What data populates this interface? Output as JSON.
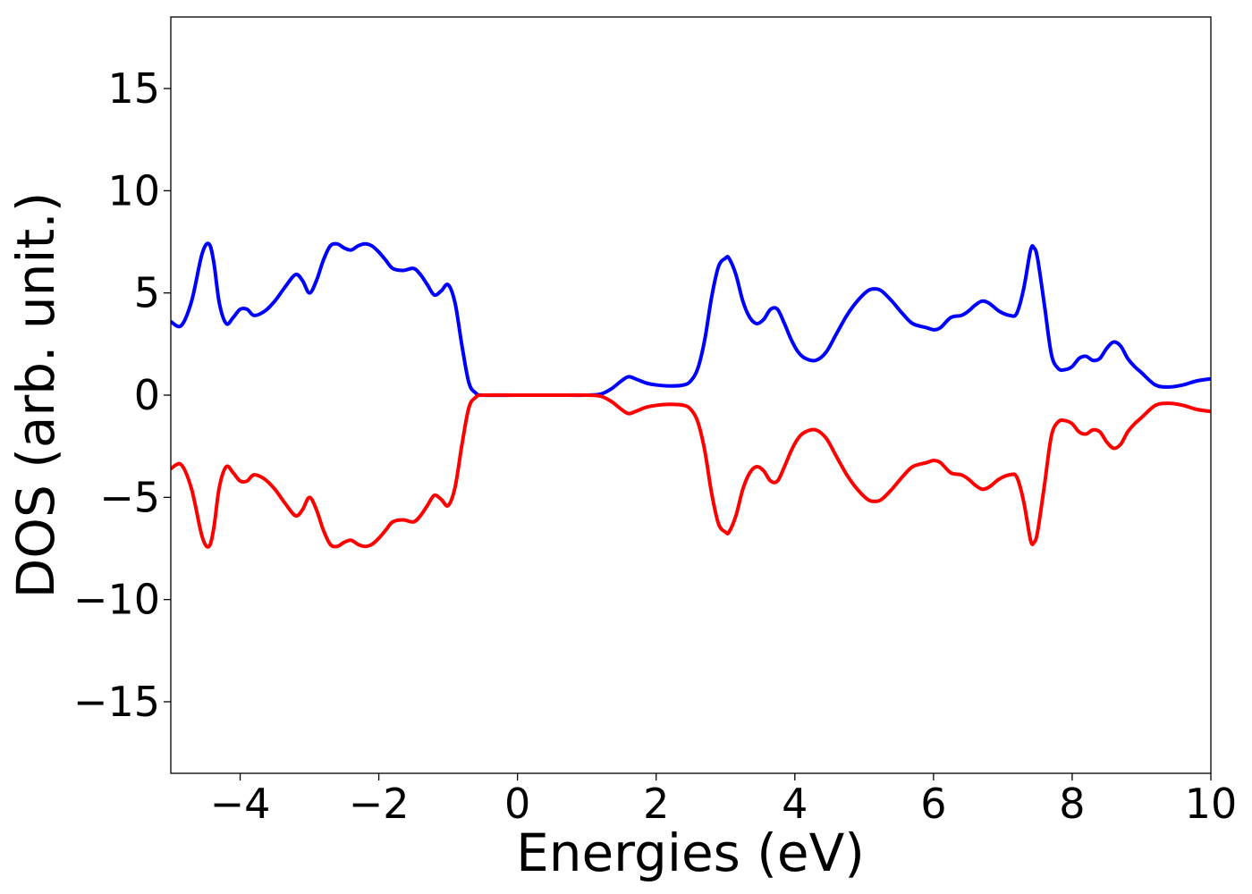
{
  "chart_data": {
    "type": "line",
    "title": "",
    "xlabel": "Energies (eV)",
    "ylabel": "DOS (arb. unit.)",
    "xlim": [
      -5,
      10
    ],
    "ylim": [
      -18.5,
      18.5
    ],
    "grid": false,
    "legend": "none",
    "xticks": [
      -4,
      -2,
      0,
      2,
      4,
      6,
      8,
      10
    ],
    "xtick_labels": [
      "−4",
      "−2",
      "0",
      "2",
      "4",
      "6",
      "8",
      "10"
    ],
    "yticks": [
      -15,
      -10,
      -5,
      0,
      5,
      10,
      15
    ],
    "ytick_labels": [
      "−15",
      "−10",
      "−5",
      "0",
      "5",
      "10",
      "15"
    ],
    "mirror_about_zero": true,
    "series": [
      {
        "color": "#0000ff",
        "x": [
          -5.0,
          -4.85,
          -4.7,
          -4.55,
          -4.45,
          -4.38,
          -4.3,
          -4.2,
          -4.1,
          -4.0,
          -3.9,
          -3.8,
          -3.65,
          -3.5,
          -3.35,
          -3.2,
          -3.1,
          -3.0,
          -2.9,
          -2.8,
          -2.7,
          -2.6,
          -2.5,
          -2.4,
          -2.3,
          -2.2,
          -2.1,
          -2.0,
          -1.9,
          -1.8,
          -1.65,
          -1.5,
          -1.4,
          -1.3,
          -1.2,
          -1.1,
          -1.0,
          -0.9,
          -0.8,
          -0.7,
          -0.6,
          -0.5,
          0.0,
          0.5,
          1.0,
          1.2,
          1.35,
          1.5,
          1.6,
          1.7,
          1.85,
          2.0,
          2.2,
          2.4,
          2.5,
          2.6,
          2.7,
          2.8,
          2.9,
          3.0,
          3.05,
          3.15,
          3.25,
          3.35,
          3.45,
          3.55,
          3.65,
          3.75,
          3.85,
          3.95,
          4.05,
          4.15,
          4.3,
          4.45,
          4.6,
          4.75,
          4.9,
          5.05,
          5.15,
          5.25,
          5.4,
          5.55,
          5.7,
          5.9,
          6.0,
          6.1,
          6.25,
          6.4,
          6.5,
          6.6,
          6.7,
          6.8,
          6.95,
          7.1,
          7.2,
          7.3,
          7.4,
          7.45,
          7.5,
          7.6,
          7.7,
          7.8,
          7.9,
          8.0,
          8.1,
          8.2,
          8.3,
          8.4,
          8.5,
          8.6,
          8.7,
          8.8,
          8.9,
          9.0,
          9.2,
          9.4,
          9.6,
          9.8,
          10.0
        ],
        "values": [
          3.6,
          3.4,
          4.6,
          6.9,
          7.4,
          6.5,
          4.5,
          3.5,
          3.8,
          4.2,
          4.2,
          3.9,
          4.1,
          4.6,
          5.3,
          5.9,
          5.6,
          5.0,
          5.6,
          6.6,
          7.3,
          7.4,
          7.2,
          7.1,
          7.3,
          7.4,
          7.3,
          7.0,
          6.6,
          6.2,
          6.1,
          6.2,
          5.9,
          5.4,
          4.9,
          5.1,
          5.4,
          4.5,
          2.4,
          0.6,
          0.1,
          0.0,
          0.0,
          0.0,
          0.0,
          0.05,
          0.3,
          0.7,
          0.9,
          0.8,
          0.6,
          0.5,
          0.45,
          0.5,
          0.7,
          1.3,
          2.7,
          4.8,
          6.3,
          6.7,
          6.7,
          5.9,
          4.6,
          3.8,
          3.5,
          3.7,
          4.2,
          4.2,
          3.5,
          2.7,
          2.1,
          1.8,
          1.7,
          2.1,
          3.0,
          3.9,
          4.6,
          5.1,
          5.2,
          5.1,
          4.6,
          4.0,
          3.5,
          3.3,
          3.2,
          3.3,
          3.8,
          3.9,
          4.1,
          4.4,
          4.6,
          4.5,
          4.1,
          3.9,
          4.0,
          5.2,
          7.1,
          7.2,
          6.7,
          4.4,
          2.0,
          1.3,
          1.25,
          1.4,
          1.8,
          1.9,
          1.7,
          1.8,
          2.3,
          2.6,
          2.4,
          1.8,
          1.4,
          1.1,
          0.5,
          0.4,
          0.5,
          0.7,
          0.8
        ]
      },
      {
        "color": "#ff0000",
        "x": [
          -5.0,
          -4.85,
          -4.7,
          -4.55,
          -4.45,
          -4.38,
          -4.3,
          -4.2,
          -4.1,
          -4.0,
          -3.9,
          -3.8,
          -3.65,
          -3.5,
          -3.35,
          -3.2,
          -3.1,
          -3.0,
          -2.9,
          -2.8,
          -2.7,
          -2.6,
          -2.5,
          -2.4,
          -2.3,
          -2.2,
          -2.1,
          -2.0,
          -1.9,
          -1.8,
          -1.65,
          -1.5,
          -1.4,
          -1.3,
          -1.2,
          -1.1,
          -1.0,
          -0.9,
          -0.8,
          -0.7,
          -0.6,
          -0.5,
          0.0,
          0.5,
          1.0,
          1.2,
          1.35,
          1.5,
          1.6,
          1.7,
          1.85,
          2.0,
          2.2,
          2.4,
          2.5,
          2.6,
          2.7,
          2.8,
          2.9,
          3.0,
          3.05,
          3.15,
          3.25,
          3.35,
          3.45,
          3.55,
          3.65,
          3.75,
          3.85,
          3.95,
          4.05,
          4.15,
          4.3,
          4.45,
          4.6,
          4.75,
          4.9,
          5.05,
          5.15,
          5.25,
          5.4,
          5.55,
          5.7,
          5.9,
          6.0,
          6.1,
          6.25,
          6.4,
          6.5,
          6.6,
          6.7,
          6.8,
          6.95,
          7.1,
          7.2,
          7.3,
          7.4,
          7.45,
          7.5,
          7.6,
          7.7,
          7.8,
          7.9,
          8.0,
          8.1,
          8.2,
          8.3,
          8.4,
          8.5,
          8.6,
          8.7,
          8.8,
          8.9,
          9.0,
          9.2,
          9.4,
          9.6,
          9.8,
          10.0
        ],
        "values": [
          -3.6,
          -3.4,
          -4.6,
          -6.9,
          -7.4,
          -6.5,
          -4.5,
          -3.5,
          -3.8,
          -4.2,
          -4.2,
          -3.9,
          -4.1,
          -4.6,
          -5.3,
          -5.9,
          -5.6,
          -5.0,
          -5.6,
          -6.6,
          -7.3,
          -7.4,
          -7.2,
          -7.1,
          -7.3,
          -7.4,
          -7.3,
          -7.0,
          -6.6,
          -6.2,
          -6.1,
          -6.2,
          -5.9,
          -5.4,
          -4.9,
          -5.1,
          -5.4,
          -4.5,
          -2.4,
          -0.6,
          -0.1,
          0.0,
          0.0,
          0.0,
          0.0,
          -0.05,
          -0.3,
          -0.7,
          -0.9,
          -0.8,
          -0.6,
          -0.5,
          -0.45,
          -0.5,
          -0.7,
          -1.3,
          -2.7,
          -4.8,
          -6.3,
          -6.7,
          -6.7,
          -5.9,
          -4.6,
          -3.8,
          -3.5,
          -3.7,
          -4.2,
          -4.2,
          -3.5,
          -2.7,
          -2.1,
          -1.8,
          -1.7,
          -2.1,
          -3.0,
          -3.9,
          -4.6,
          -5.1,
          -5.2,
          -5.1,
          -4.6,
          -4.0,
          -3.5,
          -3.3,
          -3.2,
          -3.3,
          -3.8,
          -3.9,
          -4.1,
          -4.4,
          -4.6,
          -4.5,
          -4.1,
          -3.9,
          -4.0,
          -5.2,
          -7.1,
          -7.2,
          -6.7,
          -4.4,
          -2.0,
          -1.3,
          -1.25,
          -1.4,
          -1.8,
          -1.9,
          -1.7,
          -1.8,
          -2.3,
          -2.6,
          -2.4,
          -1.8,
          -1.4,
          -1.1,
          -0.5,
          -0.4,
          -0.5,
          -0.7,
          -0.8
        ]
      }
    ]
  }
}
